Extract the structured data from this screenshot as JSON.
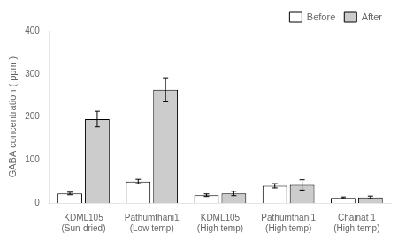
{
  "chart_data": {
    "type": "bar",
    "ylabel": "GABA concentration ( ppm )",
    "categories": [
      "KDML105\n(Sun-dried)",
      "Pathumthani1\n(Low temp)",
      "KDML105\n(High temp)",
      "Pathumthani1\n(High temp)",
      "Chainat 1\n(High temp)"
    ],
    "series": [
      {
        "name": "Before",
        "color": "#ffffff",
        "values": [
          22,
          50,
          18,
          40,
          12
        ],
        "errors": [
          3,
          5,
          3,
          5,
          2
        ]
      },
      {
        "name": "After",
        "color": "#cccccc",
        "values": [
          195,
          263,
          22,
          42,
          13
        ],
        "errors": [
          18,
          28,
          5,
          12,
          3
        ]
      }
    ],
    "ylim": [
      0,
      400
    ],
    "yticks": [
      0,
      100,
      200,
      300,
      400
    ],
    "grid": false,
    "legend": "upper right"
  }
}
